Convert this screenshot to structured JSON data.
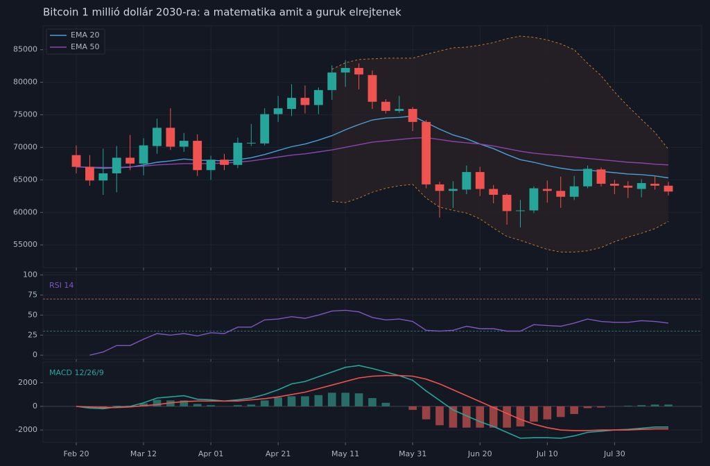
{
  "chart_data": [
    {
      "type": "candlestick",
      "title": "Bitcoin 1 millió dollár 2030-ra: a matematika amit a guruk elrejtenek",
      "categories": [
        "Feb 20",
        null,
        null,
        null,
        null,
        "Mar 12",
        null,
        null,
        null,
        null,
        "Apr 01",
        null,
        null,
        null,
        null,
        "Apr 21",
        null,
        null,
        null,
        null,
        "May 11",
        null,
        null,
        null,
        null,
        "May 31",
        null,
        null,
        null,
        null,
        "Jun 20",
        null,
        null,
        null,
        null,
        "Jul 10",
        null,
        null,
        null,
        null,
        "Jul 30",
        null,
        null,
        null,
        null
      ],
      "open": [
        68800,
        67000,
        64900,
        66000,
        68400,
        67500,
        70200,
        73000,
        70100,
        71000,
        66500,
        68100,
        67300,
        70600,
        70600,
        75100,
        75900,
        77600,
        76500,
        78800,
        81500,
        82200,
        81100,
        77000,
        75600,
        75900,
        73900,
        64300,
        63300,
        63500,
        66200,
        63600,
        62700,
        60200,
        60300,
        63600,
        63300,
        62400,
        64000,
        66600,
        64400,
        64100,
        63600,
        64400,
        64100
      ],
      "high": [
        70300,
        68800,
        69800,
        70200,
        71900,
        71400,
        74400,
        76000,
        72200,
        72000,
        68700,
        69000,
        71500,
        73600,
        76000,
        77900,
        79700,
        79500,
        79200,
        82600,
        83400,
        82900,
        81800,
        77400,
        77900,
        76200,
        74200,
        64700,
        64800,
        67200,
        67000,
        64200,
        62900,
        61900,
        64000,
        64900,
        65500,
        65600,
        67200,
        66900,
        65000,
        64800,
        65100,
        65500,
        64700
      ],
      "low": [
        66000,
        64100,
        62700,
        63100,
        66500,
        65700,
        69000,
        69600,
        69300,
        65600,
        65000,
        66500,
        66800,
        70200,
        70300,
        73900,
        74800,
        75200,
        75100,
        77300,
        79300,
        78900,
        75900,
        75200,
        75300,
        72500,
        63700,
        59200,
        60700,
        62800,
        62500,
        61400,
        58100,
        57700,
        59900,
        61500,
        60700,
        61900,
        63700,
        64000,
        62800,
        62200,
        62300,
        63500,
        62600
      ],
      "close": [
        67000,
        64900,
        66000,
        68400,
        67500,
        70300,
        73000,
        70100,
        71000,
        66500,
        68100,
        67300,
        70700,
        70700,
        75100,
        76000,
        77600,
        76500,
        78800,
        81500,
        82200,
        81200,
        77000,
        75600,
        75900,
        73900,
        64300,
        63300,
        63600,
        66200,
        63600,
        62700,
        60200,
        60300,
        63700,
        63300,
        62400,
        64000,
        66700,
        64400,
        64100,
        63800,
        64500,
        64100,
        63200
      ],
      "up_color": "#26a69a",
      "down_color": "#ef5350",
      "series": [
        {
          "name": "EMA 20",
          "color": "#4a9fd8",
          "values": [
            67000,
            66900,
            66800,
            66850,
            66950,
            67300,
            67700,
            67900,
            68200,
            68000,
            68000,
            67900,
            68100,
            68400,
            68900,
            69500,
            70100,
            70500,
            71100,
            71800,
            72700,
            73500,
            74200,
            74500,
            74600,
            74800,
            73800,
            72800,
            71900,
            71300,
            70500,
            69800,
            68900,
            68100,
            67700,
            67200,
            66800,
            66500,
            66500,
            66300,
            66100,
            65900,
            65800,
            65600,
            65300
          ]
        },
        {
          "name": "EMA 50",
          "color": "#8e44ad",
          "values": [
            67000,
            66950,
            66900,
            66900,
            67000,
            67100,
            67300,
            67400,
            67500,
            67500,
            67500,
            67600,
            67700,
            67900,
            68200,
            68500,
            68800,
            69000,
            69300,
            69600,
            70000,
            70400,
            70800,
            71000,
            71200,
            71400,
            71500,
            71200,
            70900,
            70700,
            70500,
            70200,
            69800,
            69400,
            69100,
            68900,
            68700,
            68500,
            68300,
            68100,
            67900,
            67700,
            67600,
            67400,
            67300
          ]
        }
      ],
      "bands": {
        "color": "#c07a2a",
        "upper": [
          null,
          null,
          null,
          null,
          null,
          null,
          null,
          null,
          null,
          null,
          null,
          null,
          null,
          null,
          null,
          null,
          null,
          null,
          null,
          82000,
          83000,
          83500,
          83600,
          83700,
          83700,
          83700,
          84300,
          84800,
          85300,
          85400,
          85700,
          86100,
          86700,
          87100,
          86900,
          86500,
          85900,
          85000,
          82900,
          81000,
          78500,
          76300,
          74300,
          72300,
          69700
        ],
        "lower": [
          null,
          null,
          null,
          null,
          null,
          null,
          null,
          null,
          null,
          null,
          null,
          null,
          null,
          null,
          null,
          null,
          null,
          null,
          null,
          61700,
          61500,
          62200,
          63100,
          63700,
          64100,
          64300,
          62200,
          60800,
          60300,
          59900,
          59000,
          57600,
          56300,
          55700,
          55000,
          54300,
          53900,
          53900,
          54100,
          54600,
          55500,
          56200,
          56800,
          57500,
          58600
        ]
      },
      "ylim": [
        51500,
        88700
      ],
      "yticks": [
        55000,
        60000,
        65000,
        70000,
        75000,
        80000,
        85000
      ],
      "grid": true,
      "legend": "upper-left"
    },
    {
      "type": "line",
      "series": [
        {
          "name": "RSI 14",
          "color": "#7e57c2",
          "values": [
            null,
            0,
            4,
            12,
            12,
            20,
            27,
            25,
            27,
            24,
            28,
            27,
            35,
            35,
            44,
            45,
            48,
            46,
            50,
            55,
            56,
            54,
            47,
            44,
            45,
            42,
            31,
            30,
            31,
            36,
            33,
            33,
            30,
            30,
            38,
            37,
            36,
            40,
            45,
            42,
            41,
            41,
            43,
            42,
            40
          ]
        }
      ],
      "levels": [
        {
          "value": 70,
          "color": "#b86a5a"
        },
        {
          "value": 30,
          "color": "#2f8f83"
        }
      ],
      "ylim": [
        -5,
        103
      ],
      "yticks": [
        0,
        25,
        50,
        75,
        100
      ],
      "grid": true
    },
    {
      "type": "macd",
      "series": [
        {
          "name": "MACD 12/26/9",
          "color": "#26a69a",
          "values": [
            0,
            -150,
            -200,
            -50,
            0,
            300,
            700,
            800,
            900,
            600,
            550,
            450,
            550,
            700,
            1000,
            1400,
            1900,
            2100,
            2500,
            2900,
            3300,
            3450,
            3200,
            2900,
            2600,
            2200,
            1300,
            500,
            -300,
            -800,
            -1300,
            -1700,
            -2200,
            -2700,
            -2650,
            -2650,
            -2700,
            -2500,
            -2200,
            -2100,
            -2000,
            -1950,
            -1850,
            -1750,
            -1750
          ]
        },
        {
          "color": "#ef5350",
          "values": [
            0,
            -50,
            -100,
            -100,
            -50,
            50,
            150,
            300,
            400,
            450,
            450,
            450,
            450,
            550,
            650,
            800,
            1000,
            1200,
            1500,
            1800,
            2100,
            2400,
            2550,
            2600,
            2600,
            2550,
            2300,
            1900,
            1400,
            900,
            400,
            -100,
            -600,
            -1100,
            -1500,
            -1800,
            -2000,
            -2050,
            -2050,
            -2000,
            -2000,
            -2000,
            -1950,
            -1900,
            -1900
          ]
        }
      ],
      "histogram": [
        0,
        -100,
        -100,
        50,
        50,
        250,
        550,
        500,
        500,
        200,
        100,
        0,
        100,
        150,
        500,
        750,
        850,
        850,
        950,
        1150,
        1150,
        1100,
        700,
        300,
        0,
        -300,
        -1100,
        -1600,
        -1800,
        -1800,
        -1800,
        -1800,
        -1800,
        -1700,
        -1300,
        -1100,
        -900,
        -650,
        -150,
        -100,
        0,
        50,
        100,
        150,
        150
      ],
      "up_color": "#2b7d74",
      "down_color": "#b04a4a",
      "ylim": [
        -3050,
        3750
      ],
      "yticks": [
        -2000,
        0,
        2000
      ],
      "grid": true
    }
  ]
}
